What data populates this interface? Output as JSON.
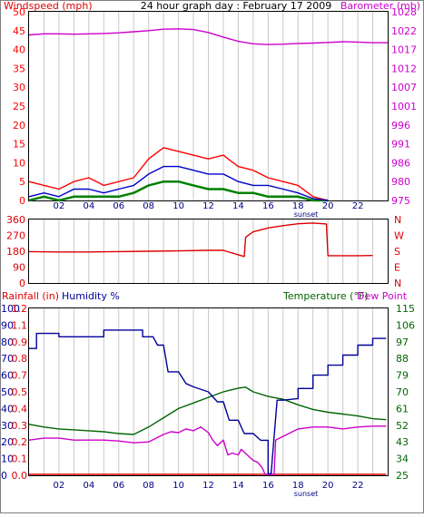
{
  "colors": {
    "frame": "#000000",
    "grid": "#c8c8c8",
    "wind_avg": "#0000cc",
    "wind_gust": "#ff0000",
    "wind_green": "#008000",
    "barometer": "#cc00cc",
    "direction": "#dd0000",
    "humidity": "#000099",
    "temperature": "#006600",
    "dewpoint": "#cc00cc",
    "rainfall": "#dd0000"
  },
  "chart_data": [
    {
      "type": "line",
      "name": "wind-barometer",
      "title": "24 hour graph day : February 17 2009",
      "left_axis_label": "Windspeed (mph)",
      "right_axis_label": "Barometer (mb)",
      "x_tick_labels": [
        "02",
        "04",
        "06",
        "08",
        "10",
        "12",
        "14",
        "16",
        "18",
        "20",
        "22"
      ],
      "sunset_label": "sunset",
      "left_ticks": [
        "0",
        "5",
        "10",
        "15",
        "20",
        "25",
        "30",
        "35",
        "40",
        "45",
        "50"
      ],
      "right_ticks": [
        "975",
        "980",
        "986",
        "991",
        "996",
        "1001",
        "1007",
        "1012",
        "1017",
        "1022",
        "1028"
      ],
      "ylim_left": [
        0,
        50
      ],
      "ylim_right": [
        975,
        1028
      ],
      "series": [
        {
          "key": "barometer",
          "x": [
            0,
            1,
            2,
            3,
            4,
            5,
            6,
            7,
            8,
            9,
            10,
            11,
            12,
            13,
            14,
            15,
            16,
            17,
            18,
            19,
            20,
            21,
            22,
            23,
            24
          ],
          "values": [
            1021.5,
            1021.8,
            1021.8,
            1021.7,
            1021.8,
            1021.9,
            1022.1,
            1022.4,
            1022.7,
            1023.1,
            1023.2,
            1023.0,
            1022.2,
            1020.9,
            1019.7,
            1019.0,
            1018.8,
            1018.9,
            1019.1,
            1019.2,
            1019.4,
            1019.6,
            1019.5,
            1019.3,
            1019.3
          ]
        },
        {
          "key": "wind_gust",
          "x": [
            0,
            1,
            2,
            3,
            4,
            5,
            6,
            7,
            8,
            9,
            10,
            11,
            12,
            13,
            14,
            15,
            16,
            17,
            18,
            19,
            20
          ],
          "values": [
            5,
            4,
            3,
            5,
            6,
            4,
            5,
            6,
            11,
            14,
            13,
            12,
            11,
            12,
            9,
            8,
            6,
            5,
            4,
            1,
            0
          ]
        },
        {
          "key": "wind_avg",
          "x": [
            0,
            1,
            2,
            3,
            4,
            5,
            6,
            7,
            8,
            9,
            10,
            11,
            12,
            13,
            14,
            15,
            16,
            17,
            18,
            19,
            20
          ],
          "values": [
            1,
            2,
            1,
            3,
            3,
            2,
            3,
            4,
            7,
            9,
            9,
            8,
            7,
            7,
            5,
            4,
            4,
            3,
            2,
            0.5,
            0
          ]
        },
        {
          "key": "wind_green",
          "x": [
            0,
            1,
            2,
            3,
            4,
            5,
            6,
            7,
            8,
            9,
            10,
            11,
            12,
            13,
            14,
            15,
            16,
            17,
            18,
            19,
            20
          ],
          "values": [
            0,
            1,
            0,
            1,
            1,
            1,
            1,
            2,
            4,
            5,
            5,
            4,
            3,
            3,
            2,
            2,
            1,
            1,
            1,
            0,
            0
          ]
        }
      ]
    },
    {
      "type": "line",
      "name": "wind-direction",
      "left_ticks": [
        "0",
        "90",
        "180",
        "270",
        "360"
      ],
      "right_ticks": [
        "N",
        "E",
        "S",
        "W",
        "N"
      ],
      "ylim": [
        0,
        360
      ],
      "series": [
        {
          "key": "direction",
          "x": [
            0,
            2,
            4,
            6,
            8,
            10,
            12,
            13,
            14,
            14.4,
            14.5,
            15,
            16,
            17,
            18,
            19,
            19.9,
            20,
            21,
            22,
            23
          ],
          "values": [
            178,
            176,
            176,
            178,
            180,
            182,
            185,
            185,
            160,
            150,
            260,
            290,
            312,
            325,
            336,
            340,
            335,
            155,
            155,
            155,
            156
          ]
        }
      ]
    },
    {
      "type": "line",
      "name": "rain-humidity-temperature",
      "left_axis_label_1": "Rainfall (in)",
      "left_axis_label_2": "Humidity %",
      "right_axis_label_1": "Temperature (°F)",
      "right_axis_label_2": "Dew Point",
      "x_tick_labels": [
        "02",
        "04",
        "06",
        "08",
        "10",
        "12",
        "14",
        "16",
        "18",
        "20",
        "22"
      ],
      "sunset_label": "sunset",
      "humidity_ticks": [
        "0",
        "10",
        "20",
        "30",
        "40",
        "50",
        "60",
        "70",
        "80",
        "90",
        "100"
      ],
      "rain_ticks": [
        "0.0",
        "0.1",
        "0.2",
        "0.3",
        "0.4",
        "0.5",
        "0.7",
        "0.8",
        "0.9",
        "1.1",
        "1.2"
      ],
      "temperature_ticks": [
        "25",
        "34",
        "43",
        "52",
        "61",
        "70",
        "79",
        "88",
        "97",
        "106",
        "115"
      ],
      "ylim_humidity": [
        0,
        100
      ],
      "ylim_temperature": [
        25,
        115
      ],
      "series": [
        {
          "key": "humidity",
          "x": [
            0,
            0.5,
            0.5,
            2,
            2,
            5,
            5,
            7.6,
            7.6,
            8.3,
            8.6,
            9,
            9.3,
            10,
            10.5,
            11,
            12,
            12.6,
            13,
            13.4,
            14,
            14.4,
            15,
            15.5,
            16,
            16,
            16.2,
            16.6,
            17,
            18,
            18,
            19,
            19,
            20,
            20,
            21,
            21,
            22,
            22,
            23,
            23,
            23.9
          ],
          "values": [
            76,
            76,
            85,
            85,
            83,
            83,
            87,
            87,
            83,
            83,
            78,
            78,
            62,
            62,
            55,
            53,
            50,
            44,
            44,
            33,
            33,
            25,
            25,
            21,
            21,
            1,
            1,
            45,
            45,
            46,
            52,
            52,
            60,
            60,
            66,
            66,
            72,
            72,
            78,
            78,
            82,
            82
          ]
        },
        {
          "key": "temperature",
          "x": [
            0,
            1,
            2,
            3,
            4,
            5,
            6,
            7,
            8,
            9,
            10,
            11,
            12,
            13,
            14,
            14.5,
            15,
            16,
            17,
            18,
            19,
            20,
            21,
            22,
            23,
            23.9
          ],
          "values": [
            52.5,
            51,
            50,
            49.5,
            49,
            48.5,
            47.5,
            47,
            51,
            56,
            61,
            64,
            67,
            70,
            72,
            72.5,
            70,
            67.5,
            66,
            63,
            60.5,
            59,
            58,
            57,
            55.5,
            55
          ]
        },
        {
          "key": "dewpoint",
          "x": [
            0,
            1,
            2,
            3,
            4,
            5,
            6,
            7,
            8,
            8.5,
            9,
            9.5,
            10,
            10.5,
            11,
            11.5,
            12,
            12.3,
            12.6,
            13,
            13.3,
            13.6,
            14,
            14.2,
            15,
            15.3,
            15.6,
            15.8,
            16,
            16.2,
            16.4,
            16.5,
            17,
            18,
            19,
            20,
            21,
            22,
            23,
            23.9
          ],
          "values": [
            44,
            45,
            45,
            44,
            44,
            44,
            43.5,
            42.5,
            43,
            45,
            47,
            48.5,
            48,
            50,
            49,
            51,
            48,
            44,
            41,
            44,
            36,
            37,
            36,
            39,
            33,
            32,
            29,
            25.5,
            25.5,
            25.5,
            25.5,
            44,
            46,
            50,
            51,
            51,
            50,
            51,
            51.5,
            51.5
          ]
        },
        {
          "key": "rainfall",
          "x": [
            0,
            23.9
          ],
          "values": [
            0,
            0
          ]
        }
      ]
    }
  ]
}
